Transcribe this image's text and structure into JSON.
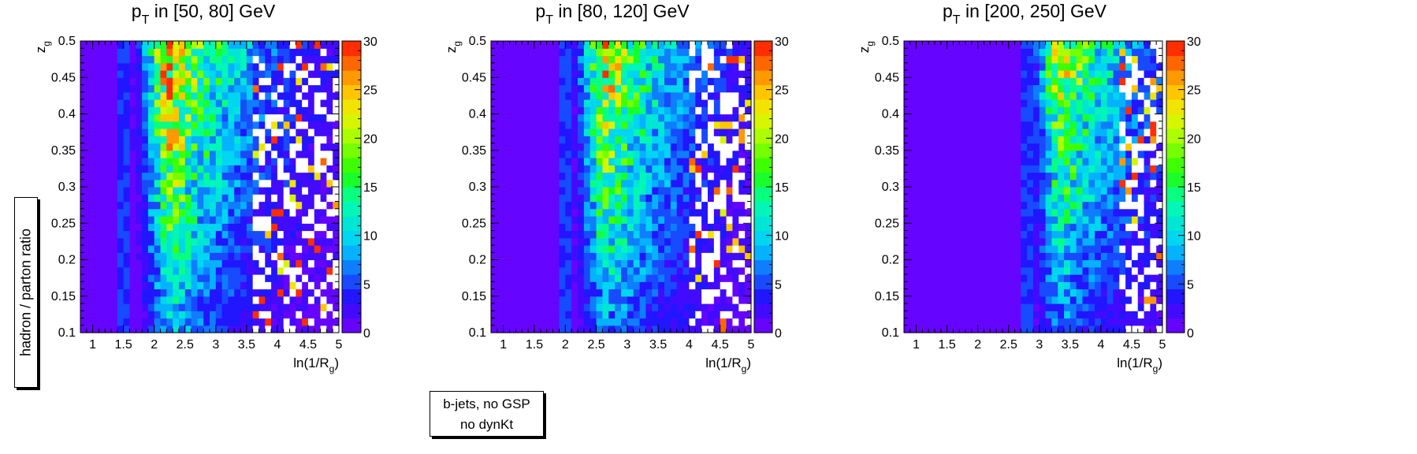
{
  "shared_ylabel": "hadron / parton ratio",
  "legend": {
    "line1": "b-jets, no GSP",
    "line2": "no dynKt"
  },
  "colors": {
    "frame": "#000000",
    "empty_bin": "#ffffff"
  },
  "chart_data": [
    {
      "type": "heatmap",
      "title_base": "p",
      "title_sub": "T",
      "title_rest": " in [50, 80] GeV",
      "xlabel_base": "ln(1/R",
      "xlabel_sub": "g",
      "xlabel_tail": ")",
      "ylabel_base": "z",
      "ylabel_sub": "g",
      "xlim": [
        0.8,
        5.0
      ],
      "ylim": [
        0.1,
        0.5
      ],
      "zlim": [
        0,
        30
      ],
      "xticks": [
        1,
        1.5,
        2,
        2.5,
        3,
        3.5,
        4,
        4.5,
        5
      ],
      "yticks": [
        0.1,
        0.15,
        0.2,
        0.25,
        0.3,
        0.35,
        0.4,
        0.45,
        0.5
      ],
      "zticks": [
        0,
        5,
        10,
        15,
        20,
        25,
        30
      ],
      "onset": 1.5,
      "peak_x": 2.3,
      "peak_value": 26,
      "low_z_value": 8,
      "sparse_start": 3.6
    },
    {
      "type": "heatmap",
      "title_base": "p",
      "title_sub": "T",
      "title_rest": " in [80, 120] GeV",
      "xlabel_base": "ln(1/R",
      "xlabel_sub": "g",
      "xlabel_tail": ")",
      "ylabel_base": "z",
      "ylabel_sub": "g",
      "xlim": [
        0.8,
        5.0
      ],
      "ylim": [
        0.1,
        0.5
      ],
      "zlim": [
        0,
        30
      ],
      "xticks": [
        1,
        1.5,
        2,
        2.5,
        3,
        3.5,
        4,
        4.5,
        5
      ],
      "yticks": [
        0.1,
        0.15,
        0.2,
        0.25,
        0.3,
        0.35,
        0.4,
        0.45,
        0.5
      ],
      "zticks": [
        0,
        5,
        10,
        15,
        20,
        25,
        30
      ],
      "onset": 2.0,
      "peak_x": 2.7,
      "peak_value": 23,
      "low_z_value": 7,
      "sparse_start": 4.0
    },
    {
      "type": "heatmap",
      "title_base": "p",
      "title_sub": "T",
      "title_rest": " in [200, 250] GeV",
      "xlabel_base": "ln(1/R",
      "xlabel_sub": "g",
      "xlabel_tail": ")",
      "ylabel_base": "z",
      "ylabel_sub": "g",
      "xlim": [
        0.8,
        5.0
      ],
      "ylim": [
        0.1,
        0.5
      ],
      "zlim": [
        0,
        30
      ],
      "xticks": [
        1,
        1.5,
        2,
        2.5,
        3,
        3.5,
        4,
        4.5,
        5
      ],
      "yticks": [
        0.1,
        0.15,
        0.2,
        0.25,
        0.3,
        0.35,
        0.4,
        0.45,
        0.5
      ],
      "zticks": [
        0,
        5,
        10,
        15,
        20,
        25,
        30
      ],
      "onset": 2.8,
      "peak_x": 3.4,
      "peak_value": 21,
      "low_z_value": 6,
      "sparse_start": 4.3
    }
  ]
}
